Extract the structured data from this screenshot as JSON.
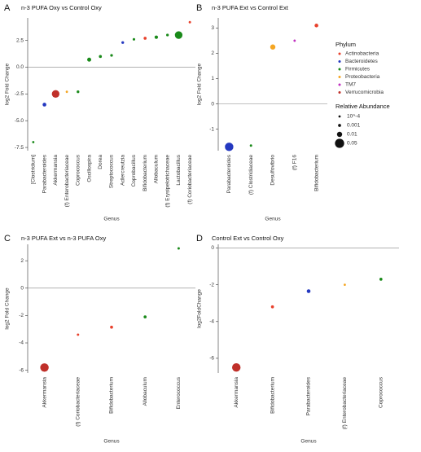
{
  "chart_data": [
    {
      "type": "scatter",
      "label": "A",
      "title": "n-3 PUFA Oxy vs Control Oxy",
      "y_label": "log2 Fold Change",
      "x_label": "Genus",
      "categories": [
        "[Clostridium]",
        "Parabacteroides",
        "Akkermansia",
        "(f) Enterobacteriaceae",
        "Coprococcus",
        "Oscillospira",
        "Dorea",
        "Streptococcus",
        "Adlercreutzia",
        "Coprobacillus",
        "Bifidobacterium",
        "Allobaculum",
        "(f) Erysipelotrichaceae",
        "Lactobacillus",
        "(f) Coriobacteriaceae"
      ],
      "values": [
        -7,
        -3.5,
        -2.5,
        -2.3,
        -2.3,
        0.7,
        1.0,
        1.1,
        2.3,
        2.6,
        2.7,
        2.8,
        3.0,
        3.0,
        4.2
      ],
      "sizes": [
        0.0001,
        0.003,
        0.03,
        0.0001,
        0.0005,
        0.004,
        0.001,
        0.0005,
        0.0005,
        0.0003,
        0.001,
        0.002,
        0.0005,
        0.03,
        0.0002
      ],
      "colors": [
        "#1a8a1a",
        "#2438c0",
        "#c0302a",
        "#f5a623",
        "#1a8a1a",
        "#1a8a1a",
        "#1a8a1a",
        "#1a8a1a",
        "#2438c0",
        "#1a8a1a",
        "#e8412c",
        "#1a8a1a",
        "#1a8a1a",
        "#1a8a1a",
        "#e8412c"
      ],
      "ylim": [
        -7.8,
        4.6
      ],
      "yticks": [
        -7.5,
        {
          "value": -5,
          "label": "-5.0"
        },
        -2.5,
        {
          "value": 0,
          "label": "0.0"
        },
        2.5
      ]
    },
    {
      "type": "scatter",
      "label": "B",
      "title": "n-3 PUFA Ext vs Control Ext",
      "y_label": "log2 Fold Change",
      "x_label": "Genus",
      "categories": [
        "Parabacteroides",
        "(f) Clostridiaceae",
        "Desulfovibrio",
        "(f) F16",
        "Bifidobacterium"
      ],
      "values": [
        -1.7,
        -1.65,
        2.25,
        2.5,
        3.1
      ],
      "sizes": [
        0.04,
        0.0002,
        0.01,
        0.0001,
        0.003
      ],
      "colors": [
        "#2438c0",
        "#1a8a1a",
        "#f5a623",
        "#c030c0",
        "#e8412c"
      ],
      "ylim": [
        -1.85,
        3.4
      ],
      "yticks": [
        -1,
        0,
        1,
        2,
        3
      ]
    },
    {
      "type": "scatter",
      "label": "C",
      "title": "n-3 PUFA Ext vs n-3 PUFA Oxy",
      "y_label": "log2 Fold Change",
      "x_label": "Genus",
      "categories": [
        "Akkermansia",
        "(f) Coriobacteriaceae",
        "Bifidobacterium",
        "Allobaculum",
        "Enterococcus"
      ],
      "values": [
        -5.8,
        -3.4,
        -2.85,
        -2.1,
        2.9
      ],
      "sizes": [
        0.04,
        0.0002,
        0.001,
        0.001,
        0.0002
      ],
      "colors": [
        "#c0302a",
        "#e8412c",
        "#e8412c",
        "#1a8a1a",
        "#1a8a1a"
      ],
      "ylim": [
        -6.2,
        3.2
      ],
      "yticks": [
        -6,
        -4,
        -2,
        0,
        2
      ]
    },
    {
      "type": "scatter",
      "label": "D",
      "title": "Control Ext vs Control Oxy",
      "y_label": "log2FoldChange",
      "x_label": "Genus",
      "categories": [
        "Akkermansia",
        "Bifidobacterium",
        "Parabacteroides",
        "(f) Enterobacteriaceae",
        "Coprococcus"
      ],
      "values": [
        -6.5,
        -3.2,
        -2.35,
        -2.0,
        -1.7
      ],
      "sizes": [
        0.04,
        0.001,
        0.003,
        0.0001,
        0.001
      ],
      "colors": [
        "#c0302a",
        "#e8412c",
        "#2438c0",
        "#f5a623",
        "#1a8a1a"
      ],
      "ylim": [
        -6.8,
        0.2
      ],
      "yticks": [
        -6,
        -4,
        -2,
        0
      ]
    }
  ],
  "legend": {
    "phylum_title": "Phylum",
    "phyla": [
      {
        "name": "Actinobacteria",
        "color": "#e8412c"
      },
      {
        "name": "Bacteroidetes",
        "color": "#2438c0"
      },
      {
        "name": "Firmicutes",
        "color": "#1a8a1a"
      },
      {
        "name": "Proteobacteria",
        "color": "#f5a623"
      },
      {
        "name": "TM7",
        "color": "#c030c0"
      },
      {
        "name": "Verrucomicrobia",
        "color": "#c0302a"
      }
    ],
    "size_title": "Relative Abundance",
    "sizes": [
      {
        "value": 0.0001,
        "label": "10^-4"
      },
      0.001,
      0.01,
      0.05
    ]
  }
}
